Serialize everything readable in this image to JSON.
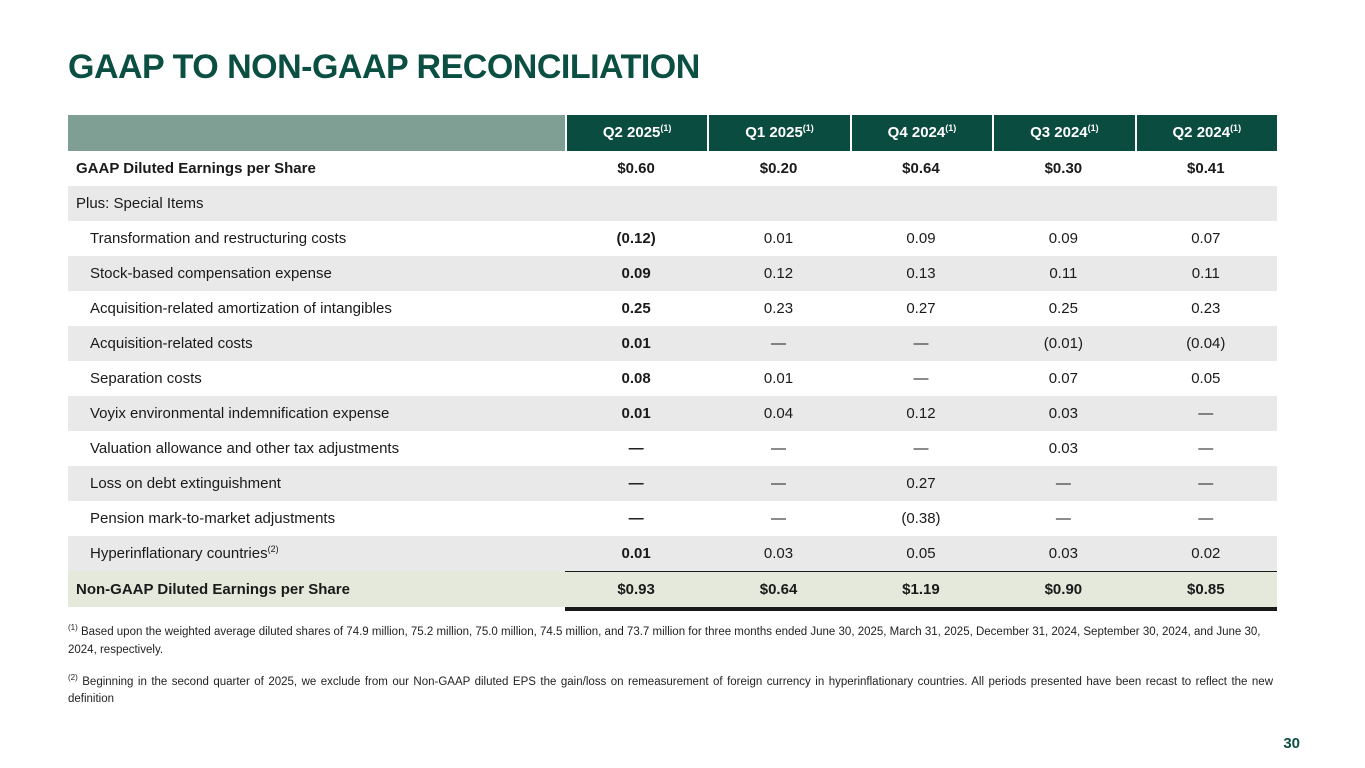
{
  "slide": {
    "title": "GAAP TO NON-GAAP RECONCILIATION",
    "page_number": "30"
  },
  "colors": {
    "title_green": "#0b4f43",
    "header_green": "#0b4c40",
    "sage_green": "#7f9e94",
    "stripe_gray": "#e9e9e9",
    "total_row_green": "#e4e9db",
    "text": "#1a1a1a"
  },
  "table": {
    "columns": [
      {
        "label": "Q2 2025",
        "sup": "(1)"
      },
      {
        "label": "Q1 2025",
        "sup": "(1)"
      },
      {
        "label": "Q4 2024",
        "sup": "(1)"
      },
      {
        "label": "Q3 2024",
        "sup": "(1)"
      },
      {
        "label": "Q2 2024",
        "sup": "(1)"
      }
    ],
    "rows": [
      {
        "label": "GAAP Diluted Earnings per Share",
        "sup": "",
        "indent": false,
        "bold": true,
        "bg": "white",
        "total": false,
        "values": [
          "$0.60",
          "$0.20",
          "$0.64",
          "$0.30",
          "$0.41"
        ]
      },
      {
        "label": "Plus: Special Items",
        "sup": "",
        "indent": false,
        "bold": false,
        "bg": "gray",
        "total": false,
        "values": [
          "",
          "",
          "",
          "",
          ""
        ]
      },
      {
        "label": "Transformation and restructuring costs",
        "sup": "",
        "indent": true,
        "bold": false,
        "bg": "white",
        "total": false,
        "values": [
          "(0.12)",
          "0.01",
          "0.09",
          "0.09",
          "0.07"
        ]
      },
      {
        "label": "Stock-based compensation expense",
        "sup": "",
        "indent": true,
        "bold": false,
        "bg": "gray",
        "total": false,
        "values": [
          "0.09",
          "0.12",
          "0.13",
          "0.11",
          "0.11"
        ]
      },
      {
        "label": "Acquisition-related amortization of intangibles",
        "sup": "",
        "indent": true,
        "bold": false,
        "bg": "white",
        "total": false,
        "values": [
          "0.25",
          "0.23",
          "0.27",
          "0.25",
          "0.23"
        ]
      },
      {
        "label": "Acquisition-related costs",
        "sup": "",
        "indent": true,
        "bold": false,
        "bg": "gray",
        "total": false,
        "values": [
          "0.01",
          "—",
          "—",
          "(0.01)",
          "(0.04)"
        ]
      },
      {
        "label": "Separation costs",
        "sup": "",
        "indent": true,
        "bold": false,
        "bg": "white",
        "total": false,
        "values": [
          "0.08",
          "0.01",
          "—",
          "0.07",
          "0.05"
        ]
      },
      {
        "label": "Voyix environmental indemnification expense",
        "sup": "",
        "indent": true,
        "bold": false,
        "bg": "gray",
        "total": false,
        "values": [
          "0.01",
          "0.04",
          "0.12",
          "0.03",
          "—"
        ]
      },
      {
        "label": "Valuation allowance and other tax adjustments",
        "sup": "",
        "indent": true,
        "bold": false,
        "bg": "white",
        "total": false,
        "values": [
          "—",
          "—",
          "—",
          "0.03",
          "—"
        ]
      },
      {
        "label": "Loss on debt extinguishment",
        "sup": "",
        "indent": true,
        "bold": false,
        "bg": "gray",
        "total": false,
        "values": [
          "—",
          "—",
          "0.27",
          "—",
          "—"
        ]
      },
      {
        "label": "Pension mark-to-market adjustments",
        "sup": "",
        "indent": true,
        "bold": false,
        "bg": "white",
        "total": false,
        "values": [
          "—",
          "—",
          "(0.38)",
          "—",
          "—"
        ]
      },
      {
        "label": "Hyperinflationary countries",
        "sup": "(2)",
        "indent": true,
        "bold": false,
        "bg": "gray",
        "total": false,
        "values": [
          "0.01",
          "0.03",
          "0.05",
          "0.03",
          "0.02"
        ]
      },
      {
        "label": "Non-GAAP Diluted Earnings per Share",
        "sup": "",
        "indent": false,
        "bold": true,
        "bg": "green",
        "total": true,
        "values": [
          "$0.93",
          "$0.64",
          "$1.19",
          "$0.90",
          "$0.85"
        ]
      }
    ]
  },
  "footnotes": [
    {
      "marker": "(1)",
      "text": "Based upon the weighted average diluted shares of 74.9 million, 75.2 million, 75.0 million, 74.5 million, and 73.7 million for three months ended June 30, 2025, March 31, 2025, December 31, 2024, September 30, 2024, and June 30, 2024, respectively."
    },
    {
      "marker": "(2)",
      "text": "Beginning in the second quarter of 2025, we exclude from our Non-GAAP diluted EPS the gain/loss on remeasurement of foreign currency in hyperinflationary countries. All periods presented have been recast to reflect the new definition"
    }
  ]
}
